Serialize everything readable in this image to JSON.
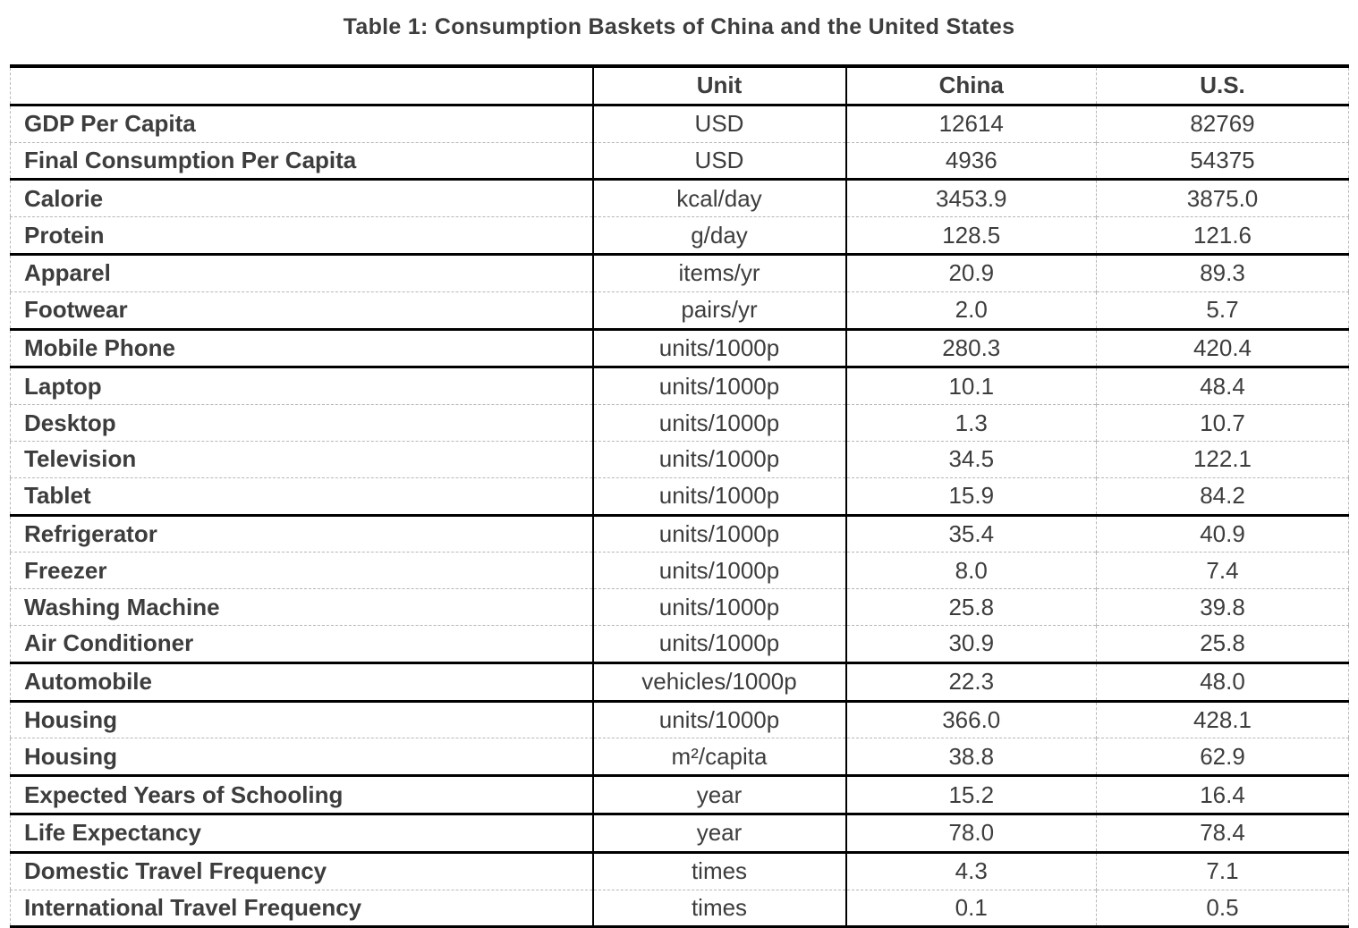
{
  "title": "Table 1: Consumption Baskets of China and the United States",
  "table": {
    "columns": {
      "label": "",
      "unit": "Unit",
      "china": "China",
      "us": "U.S."
    },
    "rows": [
      {
        "label": "GDP Per Capita",
        "unit": "USD",
        "china": "12614",
        "us": "82769",
        "group": 1
      },
      {
        "label": "Final Consumption Per Capita",
        "unit": "USD",
        "china": "4936",
        "us": "54375",
        "group": 1
      },
      {
        "label": "Calorie",
        "unit": "kcal/day",
        "china": "3453.9",
        "us": "3875.0",
        "group": 2
      },
      {
        "label": "Protein",
        "unit": "g/day",
        "china": "128.5",
        "us": "121.6",
        "group": 2
      },
      {
        "label": "Apparel",
        "unit": "items/yr",
        "china": "20.9",
        "us": "89.3",
        "group": 3
      },
      {
        "label": "Footwear",
        "unit": "pairs/yr",
        "china": "2.0",
        "us": "5.7",
        "group": 3
      },
      {
        "label": "Mobile Phone",
        "unit": "units/1000p",
        "china": "280.3",
        "us": "420.4",
        "group": 4
      },
      {
        "label": "Laptop",
        "unit": "units/1000p",
        "china": "10.1",
        "us": "48.4",
        "group": 5
      },
      {
        "label": "Desktop",
        "unit": "units/1000p",
        "china": "1.3",
        "us": "10.7",
        "group": 5
      },
      {
        "label": "Television",
        "unit": "units/1000p",
        "china": "34.5",
        "us": "122.1",
        "group": 5
      },
      {
        "label": "Tablet",
        "unit": "units/1000p",
        "china": "15.9",
        "us": "84.2",
        "group": 5
      },
      {
        "label": "Refrigerator",
        "unit": "units/1000p",
        "china": "35.4",
        "us": "40.9",
        "group": 6
      },
      {
        "label": "Freezer",
        "unit": "units/1000p",
        "china": "8.0",
        "us": "7.4",
        "group": 6
      },
      {
        "label": "Washing Machine",
        "unit": "units/1000p",
        "china": "25.8",
        "us": "39.8",
        "group": 6
      },
      {
        "label": "Air Conditioner",
        "unit": "units/1000p",
        "china": "30.9",
        "us": "25.8",
        "group": 6
      },
      {
        "label": "Automobile",
        "unit": "vehicles/1000p",
        "china": "22.3",
        "us": "48.0",
        "group": 7
      },
      {
        "label": "Housing",
        "unit": "units/1000p",
        "china": "366.0",
        "us": "428.1",
        "group": 8
      },
      {
        "label": "Housing",
        "unit": "m²/capita",
        "china": "38.8",
        "us": "62.9",
        "group": 8
      },
      {
        "label": "Expected Years of Schooling",
        "unit": "year",
        "china": "15.2",
        "us": "16.4",
        "group": 9
      },
      {
        "label": "Life Expectancy",
        "unit": "year",
        "china": "78.0",
        "us": "78.4",
        "group": 10
      },
      {
        "label": "Domestic Travel Frequency",
        "unit": "times",
        "china": "4.3",
        "us": "7.1",
        "group": 11
      },
      {
        "label": "International Travel Frequency",
        "unit": "times",
        "china": "0.1",
        "us": "0.5",
        "group": 11
      }
    ]
  },
  "colors": {
    "text": "#3d3d3d",
    "border_strong": "#000000",
    "border_dashed": "#b7b7b7"
  }
}
